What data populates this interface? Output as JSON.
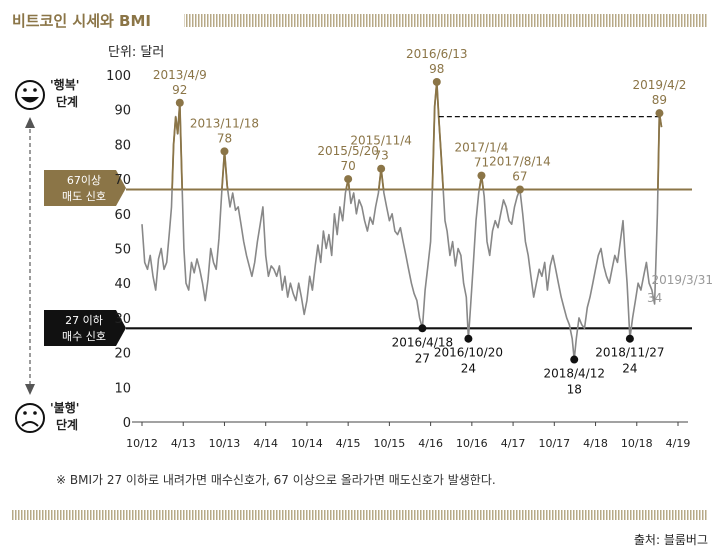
{
  "header": {
    "title": "비트코인 시세와 BMI",
    "unit": "단위: 달러"
  },
  "legend": {
    "happy_label_1": "'행복'",
    "happy_label_2": "단계",
    "unhappy_label_1": "'불행'",
    "unhappy_label_2": "단계",
    "sell_1": "67이상",
    "sell_2": "매도 신호",
    "buy_1": "27 이하",
    "buy_2": "매수 신호"
  },
  "footnote": "※ BMI가 27 이하로 내려가면 매수신호가, 67 이상으로 올라가면 매도신호가 발생한다.",
  "source": "출처: 블룸버그",
  "colors": {
    "accent": "#8b7547",
    "line": "#888888",
    "black": "#111111",
    "stripe": "#b7a987"
  },
  "chart_data": {
    "type": "line",
    "title": "비트코인 시세와 BMI",
    "ylabel": "단위: 달러",
    "ylim": [
      0,
      100
    ],
    "yticks": [
      0,
      10,
      20,
      30,
      40,
      50,
      60,
      70,
      80,
      90,
      100
    ],
    "xlim": [
      0,
      78
    ],
    "xticks": [
      {
        "x": 0,
        "label": "10/12"
      },
      {
        "x": 6,
        "label": "4/13"
      },
      {
        "x": 12,
        "label": "10/13"
      },
      {
        "x": 18,
        "label": "4/14"
      },
      {
        "x": 24,
        "label": "10/14"
      },
      {
        "x": 30,
        "label": "4/15"
      },
      {
        "x": 36,
        "label": "10/15"
      },
      {
        "x": 42,
        "label": "4/16"
      },
      {
        "x": 48,
        "label": "10/16"
      },
      {
        "x": 54,
        "label": "4/17"
      },
      {
        "x": 60,
        "label": "10/17"
      },
      {
        "x": 66,
        "label": "4/18"
      },
      {
        "x": 72,
        "label": "10/18"
      },
      {
        "x": 78,
        "label": "4/19"
      }
    ],
    "thresholds": [
      {
        "value": 67,
        "label": "67이상 매도 신호"
      },
      {
        "value": 27,
        "label": "27 이하 매수 신호"
      }
    ],
    "series": [
      {
        "name": "BMI",
        "points": [
          [
            0.0,
            57
          ],
          [
            0.4,
            46
          ],
          [
            0.8,
            44
          ],
          [
            1.2,
            48
          ],
          [
            1.6,
            42
          ],
          [
            2.0,
            38
          ],
          [
            2.4,
            47
          ],
          [
            2.8,
            50
          ],
          [
            3.2,
            44
          ],
          [
            3.6,
            46
          ],
          [
            4.0,
            55
          ],
          [
            4.3,
            62
          ],
          [
            4.6,
            80
          ],
          [
            4.9,
            88
          ],
          [
            5.2,
            83
          ],
          [
            5.5,
            92
          ],
          [
            5.8,
            70
          ],
          [
            6.1,
            50
          ],
          [
            6.4,
            40
          ],
          [
            6.8,
            38
          ],
          [
            7.2,
            46
          ],
          [
            7.6,
            43
          ],
          [
            8.0,
            47
          ],
          [
            8.4,
            44
          ],
          [
            8.8,
            40
          ],
          [
            9.2,
            35
          ],
          [
            9.6,
            41
          ],
          [
            10.0,
            50
          ],
          [
            10.4,
            46
          ],
          [
            10.8,
            44
          ],
          [
            11.2,
            53
          ],
          [
            11.6,
            66
          ],
          [
            12.0,
            78
          ],
          [
            12.4,
            68
          ],
          [
            12.8,
            62
          ],
          [
            13.2,
            66
          ],
          [
            13.6,
            61
          ],
          [
            14.0,
            62
          ],
          [
            14.4,
            57
          ],
          [
            14.8,
            52
          ],
          [
            15.2,
            48
          ],
          [
            15.6,
            45
          ],
          [
            16.0,
            42
          ],
          [
            16.4,
            46
          ],
          [
            16.8,
            52
          ],
          [
            17.2,
            57
          ],
          [
            17.6,
            62
          ],
          [
            18.0,
            48
          ],
          [
            18.4,
            42
          ],
          [
            18.8,
            45
          ],
          [
            19.2,
            44
          ],
          [
            19.6,
            42
          ],
          [
            20.0,
            45
          ],
          [
            20.4,
            38
          ],
          [
            20.8,
            42
          ],
          [
            21.2,
            36
          ],
          [
            21.6,
            40
          ],
          [
            22.0,
            37
          ],
          [
            22.4,
            35
          ],
          [
            22.8,
            40
          ],
          [
            23.2,
            36
          ],
          [
            23.6,
            31
          ],
          [
            24.0,
            35
          ],
          [
            24.4,
            42
          ],
          [
            24.8,
            38
          ],
          [
            25.2,
            45
          ],
          [
            25.6,
            51
          ],
          [
            26.0,
            46
          ],
          [
            26.4,
            55
          ],
          [
            26.8,
            50
          ],
          [
            27.2,
            54
          ],
          [
            27.6,
            48
          ],
          [
            28.0,
            60
          ],
          [
            28.4,
            54
          ],
          [
            28.8,
            62
          ],
          [
            29.2,
            58
          ],
          [
            29.6,
            66
          ],
          [
            30.0,
            70
          ],
          [
            30.4,
            63
          ],
          [
            30.8,
            66
          ],
          [
            31.2,
            60
          ],
          [
            31.6,
            64
          ],
          [
            32.0,
            62
          ],
          [
            32.4,
            58
          ],
          [
            32.8,
            55
          ],
          [
            33.2,
            59
          ],
          [
            33.6,
            57
          ],
          [
            34.0,
            62
          ],
          [
            34.4,
            66
          ],
          [
            34.8,
            73
          ],
          [
            35.2,
            66
          ],
          [
            35.6,
            62
          ],
          [
            36.0,
            58
          ],
          [
            36.4,
            60
          ],
          [
            36.8,
            55
          ],
          [
            37.2,
            54
          ],
          [
            37.6,
            56
          ],
          [
            38.0,
            52
          ],
          [
            38.4,
            48
          ],
          [
            38.8,
            44
          ],
          [
            39.2,
            40
          ],
          [
            39.6,
            37
          ],
          [
            40.0,
            35
          ],
          [
            40.4,
            30
          ],
          [
            40.8,
            27
          ],
          [
            41.2,
            38
          ],
          [
            41.6,
            45
          ],
          [
            42.0,
            52
          ],
          [
            42.3,
            70
          ],
          [
            42.6,
            91
          ],
          [
            42.9,
            98
          ],
          [
            43.2,
            87
          ],
          [
            43.5,
            78
          ],
          [
            43.8,
            68
          ],
          [
            44.1,
            58
          ],
          [
            44.4,
            55
          ],
          [
            44.8,
            48
          ],
          [
            45.2,
            52
          ],
          [
            45.6,
            45
          ],
          [
            46.0,
            50
          ],
          [
            46.4,
            48
          ],
          [
            46.8,
            40
          ],
          [
            47.2,
            36
          ],
          [
            47.5,
            24
          ],
          [
            47.8,
            33
          ],
          [
            48.2,
            45
          ],
          [
            48.6,
            58
          ],
          [
            49.0,
            66
          ],
          [
            49.4,
            71
          ],
          [
            49.8,
            65
          ],
          [
            50.2,
            52
          ],
          [
            50.6,
            48
          ],
          [
            51.0,
            55
          ],
          [
            51.4,
            58
          ],
          [
            51.8,
            56
          ],
          [
            52.2,
            60
          ],
          [
            52.6,
            64
          ],
          [
            53.0,
            62
          ],
          [
            53.4,
            58
          ],
          [
            53.8,
            57
          ],
          [
            54.2,
            62
          ],
          [
            54.6,
            65
          ],
          [
            55.0,
            67
          ],
          [
            55.4,
            60
          ],
          [
            55.8,
            52
          ],
          [
            56.2,
            48
          ],
          [
            56.6,
            42
          ],
          [
            57.0,
            36
          ],
          [
            57.4,
            40
          ],
          [
            57.8,
            44
          ],
          [
            58.2,
            42
          ],
          [
            58.6,
            46
          ],
          [
            59.0,
            38
          ],
          [
            59.4,
            45
          ],
          [
            59.8,
            48
          ],
          [
            60.2,
            44
          ],
          [
            60.6,
            40
          ],
          [
            61.0,
            36
          ],
          [
            61.4,
            33
          ],
          [
            61.8,
            30
          ],
          [
            62.2,
            28
          ],
          [
            62.6,
            24
          ],
          [
            62.9,
            18
          ],
          [
            63.2,
            24
          ],
          [
            63.6,
            30
          ],
          [
            64.0,
            28
          ],
          [
            64.4,
            27
          ],
          [
            64.8,
            33
          ],
          [
            65.2,
            36
          ],
          [
            65.6,
            40
          ],
          [
            66.0,
            44
          ],
          [
            66.4,
            48
          ],
          [
            66.8,
            50
          ],
          [
            67.2,
            45
          ],
          [
            67.6,
            42
          ],
          [
            68.0,
            40
          ],
          [
            68.4,
            44
          ],
          [
            68.8,
            48
          ],
          [
            69.2,
            46
          ],
          [
            69.6,
            52
          ],
          [
            70.0,
            58
          ],
          [
            70.3,
            48
          ],
          [
            70.6,
            40
          ],
          [
            71.0,
            24
          ],
          [
            71.4,
            30
          ],
          [
            71.8,
            35
          ],
          [
            72.2,
            40
          ],
          [
            72.6,
            38
          ],
          [
            73.0,
            42
          ],
          [
            73.4,
            46
          ],
          [
            73.8,
            40
          ],
          [
            74.2,
            38
          ],
          [
            74.6,
            34
          ],
          [
            75.0,
            60
          ],
          [
            75.3,
            89
          ],
          [
            75.6,
            85
          ]
        ]
      }
    ],
    "annotations": [
      {
        "x": 5.5,
        "y": 92,
        "date": "2013/4/9",
        "value": "92",
        "type": "peak"
      },
      {
        "x": 12.0,
        "y": 78,
        "date": "2013/11/18",
        "value": "78",
        "type": "peak"
      },
      {
        "x": 30.0,
        "y": 70,
        "date": "2015/5/20",
        "value": "70",
        "type": "peak"
      },
      {
        "x": 34.8,
        "y": 73,
        "date": "2015/11/4",
        "value": "73",
        "type": "peak"
      },
      {
        "x": 42.9,
        "y": 98,
        "date": "2016/6/13",
        "value": "98",
        "type": "peak"
      },
      {
        "x": 49.4,
        "y": 71,
        "date": "2017/1/4",
        "value": "71",
        "type": "peak"
      },
      {
        "x": 55.0,
        "y": 67,
        "date": "2017/8/14",
        "value": "67",
        "type": "peak"
      },
      {
        "x": 75.3,
        "y": 89,
        "date": "2019/4/2",
        "value": "89",
        "type": "peak"
      },
      {
        "x": 40.8,
        "y": 27,
        "date": "2016/4/18",
        "value": "27",
        "type": "trough"
      },
      {
        "x": 47.5,
        "y": 24,
        "date": "2016/10/20",
        "value": "24",
        "type": "trough"
      },
      {
        "x": 62.9,
        "y": 18,
        "date": "2018/4/12",
        "value": "18",
        "type": "trough"
      },
      {
        "x": 71.0,
        "y": 24,
        "date": "2018/11/27",
        "value": "24",
        "type": "trough"
      },
      {
        "x": 74.6,
        "y": 34,
        "date": "2019/3/31",
        "value": "34",
        "type": "gray"
      }
    ],
    "dashed_connector": {
      "from_x": 43.2,
      "to_x": 75.3,
      "y": 88
    }
  }
}
